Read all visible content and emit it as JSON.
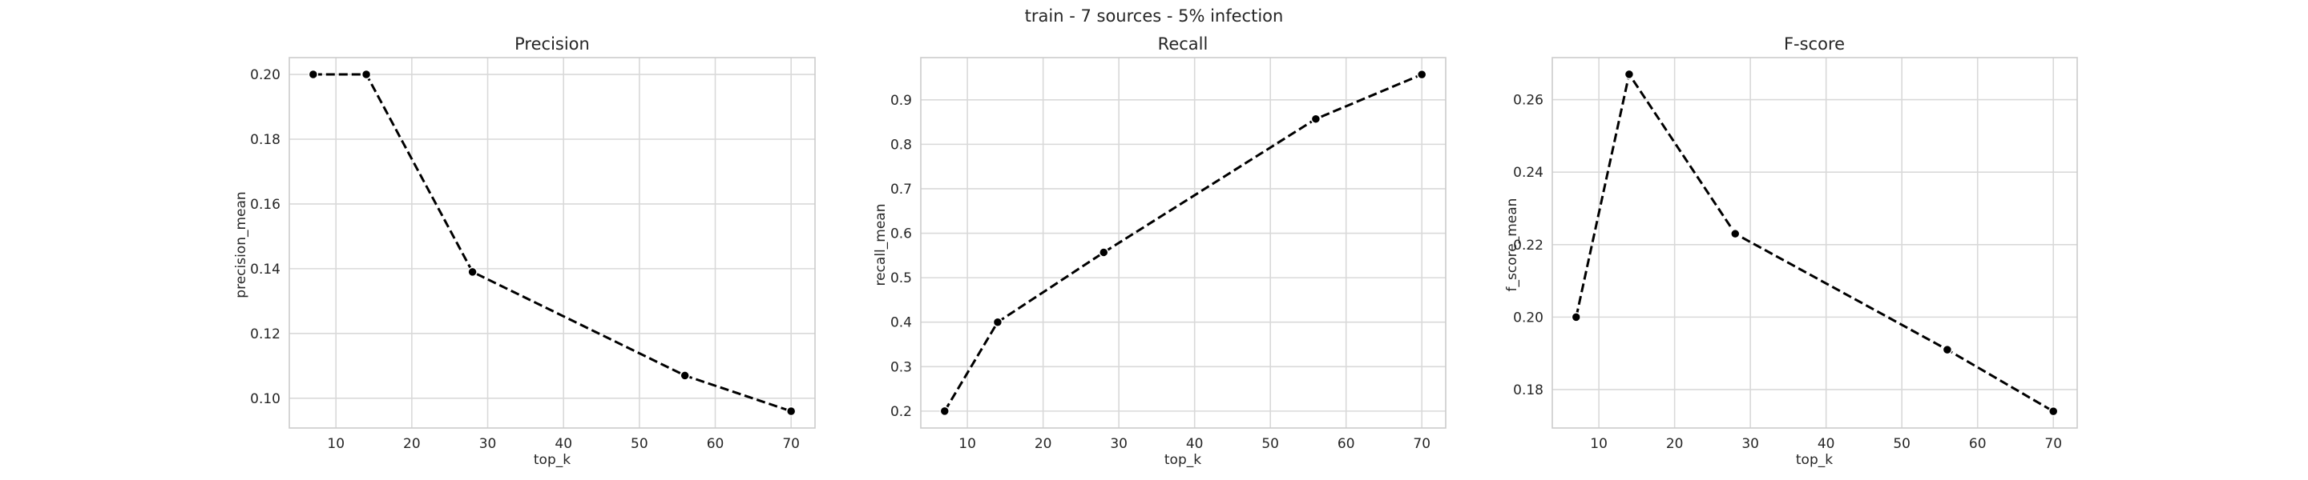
{
  "suptitle": "train - 7 sources - 5% infection",
  "colors": {
    "line": "#000000",
    "grid": "#d9d9d9",
    "frame": "#cccccc",
    "background": "#ffffff"
  },
  "chart_data": [
    {
      "type": "line",
      "title": "Precision",
      "xlabel": "top_k",
      "ylabel": "precision_mean",
      "x": [
        7,
        14,
        28,
        56,
        70
      ],
      "y": [
        0.2,
        0.2,
        0.139,
        0.107,
        0.096
      ],
      "xlim": [
        3.85,
        73.15
      ],
      "ylim": [
        0.0908,
        0.2052
      ],
      "xticks": [
        10,
        20,
        30,
        40,
        50,
        60,
        70
      ],
      "yticks": [
        0.1,
        0.12,
        0.14,
        0.16,
        0.18,
        0.2
      ],
      "xtick_labels": [
        "10",
        "20",
        "30",
        "40",
        "50",
        "60",
        "70"
      ],
      "ytick_labels": [
        "0.10",
        "0.12",
        "0.14",
        "0.16",
        "0.18",
        "0.20"
      ],
      "grid": true,
      "line_style": "dashed",
      "marker": "circle"
    },
    {
      "type": "line",
      "title": "Recall",
      "xlabel": "top_k",
      "ylabel": "recall_mean",
      "x": [
        7,
        14,
        28,
        56,
        70
      ],
      "y": [
        0.2,
        0.4,
        0.557,
        0.857,
        0.957
      ],
      "xlim": [
        3.85,
        73.15
      ],
      "ylim": [
        0.162,
        0.995
      ],
      "xticks": [
        10,
        20,
        30,
        40,
        50,
        60,
        70
      ],
      "yticks": [
        0.2,
        0.3,
        0.4,
        0.5,
        0.6,
        0.7,
        0.8,
        0.9
      ],
      "xtick_labels": [
        "10",
        "20",
        "30",
        "40",
        "50",
        "60",
        "70"
      ],
      "ytick_labels": [
        "0.2",
        "0.3",
        "0.4",
        "0.5",
        "0.6",
        "0.7",
        "0.8",
        "0.9"
      ],
      "grid": true,
      "line_style": "dashed",
      "marker": "circle"
    },
    {
      "type": "line",
      "title": "F-score",
      "xlabel": "top_k",
      "ylabel": "f_score_mean",
      "x": [
        7,
        14,
        28,
        56,
        70
      ],
      "y": [
        0.2,
        0.267,
        0.223,
        0.191,
        0.174
      ],
      "xlim": [
        3.85,
        73.15
      ],
      "ylim": [
        0.1694,
        0.2716
      ],
      "xticks": [
        10,
        20,
        30,
        40,
        50,
        60,
        70
      ],
      "yticks": [
        0.18,
        0.2,
        0.22,
        0.24,
        0.26
      ],
      "xtick_labels": [
        "10",
        "20",
        "30",
        "40",
        "50",
        "60",
        "70"
      ],
      "ytick_labels": [
        "0.18",
        "0.20",
        "0.22",
        "0.24",
        "0.26"
      ],
      "grid": true,
      "line_style": "dashed",
      "marker": "circle"
    }
  ]
}
